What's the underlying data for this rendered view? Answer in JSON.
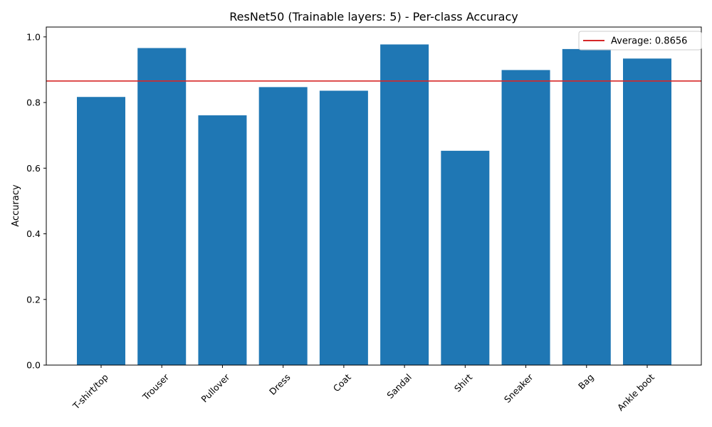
{
  "chart_data": {
    "type": "bar",
    "title": "ResNet50 (Trainable layers: 5) - Per-class Accuracy",
    "xlabel": "",
    "ylabel": "Accuracy",
    "categories": [
      "T-shirt/top",
      "Trouser",
      "Pullover",
      "Dress",
      "Coat",
      "Sandal",
      "Shirt",
      "Sneaker",
      "Bag",
      "Ankle boot"
    ],
    "values": [
      0.817,
      0.966,
      0.761,
      0.847,
      0.836,
      0.977,
      0.653,
      0.899,
      0.963,
      0.934
    ],
    "ylim": [
      0,
      1.03
    ],
    "yticks": [
      "0.0",
      "0.2",
      "0.4",
      "0.6",
      "0.8",
      "1.0"
    ],
    "grid": false,
    "bar_color": "#1f77b4",
    "average": {
      "value": 0.8656,
      "label": "Average: 0.8656",
      "color": "#d62728"
    },
    "legend": {
      "placement": "top-right",
      "entries": [
        "Average: 0.8656"
      ]
    },
    "x_tick_rotation_deg": 45
  }
}
